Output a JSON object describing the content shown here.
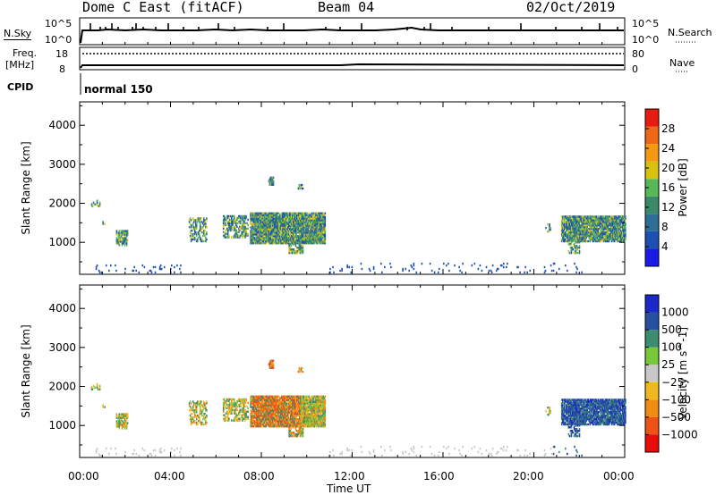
{
  "header": {
    "station": "Dome C East (fitACF)",
    "beam": "Beam 04",
    "date": "02/Oct/2019"
  },
  "sky_panel": {
    "left_label": "N.Sky",
    "left_ticks": [
      "10^5",
      "10^0"
    ],
    "right_label": "N.Search",
    "right_ticks": [
      "10^5",
      "10^0"
    ]
  },
  "freq_panel": {
    "left_label_1": "Freq.",
    "left_label_2": "[MHz]",
    "left_ticks": [
      "18",
      "8"
    ],
    "right_label": "Nave",
    "right_ticks": [
      "80",
      "0"
    ]
  },
  "cpid": {
    "label": "CPID",
    "mode": "normal 150"
  },
  "x_axis": {
    "ticks": [
      "00:00",
      "04:00",
      "08:00",
      "12:00",
      "16:00",
      "20:00",
      "00:00"
    ],
    "label": "Time UT"
  },
  "colors": {
    "power_scale": [
      "#1a1ae6",
      "#1e50b4",
      "#2e6e96",
      "#3a8a6a",
      "#58b858",
      "#d8c20e",
      "#f39a12",
      "#ee6818",
      "#e61c12"
    ],
    "velocity_scale": [
      "#e80c0c",
      "#ee5216",
      "#f08c14",
      "#f0b820",
      "#c8c8c8",
      "#78c83c",
      "#3c8c70",
      "#2850a0",
      "#1c28c8"
    ]
  },
  "chart_data": [
    {
      "type": "heatmap",
      "name": "power",
      "xlabel": "Time UT",
      "ylabel": "Slant Range [km]",
      "xlim": [
        0,
        24
      ],
      "ylim": [
        180,
        4600
      ],
      "y_ticks": [
        1000,
        2000,
        3000,
        4000
      ],
      "colorbar_label": "Power [dB]",
      "colorbar_ticks": [
        4,
        8,
        12,
        16,
        20,
        24,
        28
      ],
      "colorbar_range": [
        0,
        32
      ]
    },
    {
      "type": "heatmap",
      "name": "velocity",
      "xlabel": "Time UT",
      "ylabel": "Slant Range [km]",
      "xlim": [
        0,
        24
      ],
      "ylim": [
        180,
        4600
      ],
      "y_ticks": [
        1000,
        2000,
        3000,
        4000
      ],
      "colorbar_label": "Velocity [m s^-1]",
      "colorbar_ticks": [
        "1000",
        "500",
        "100",
        "25",
        "−25",
        "−100",
        "−500",
        "−1000"
      ]
    }
  ]
}
